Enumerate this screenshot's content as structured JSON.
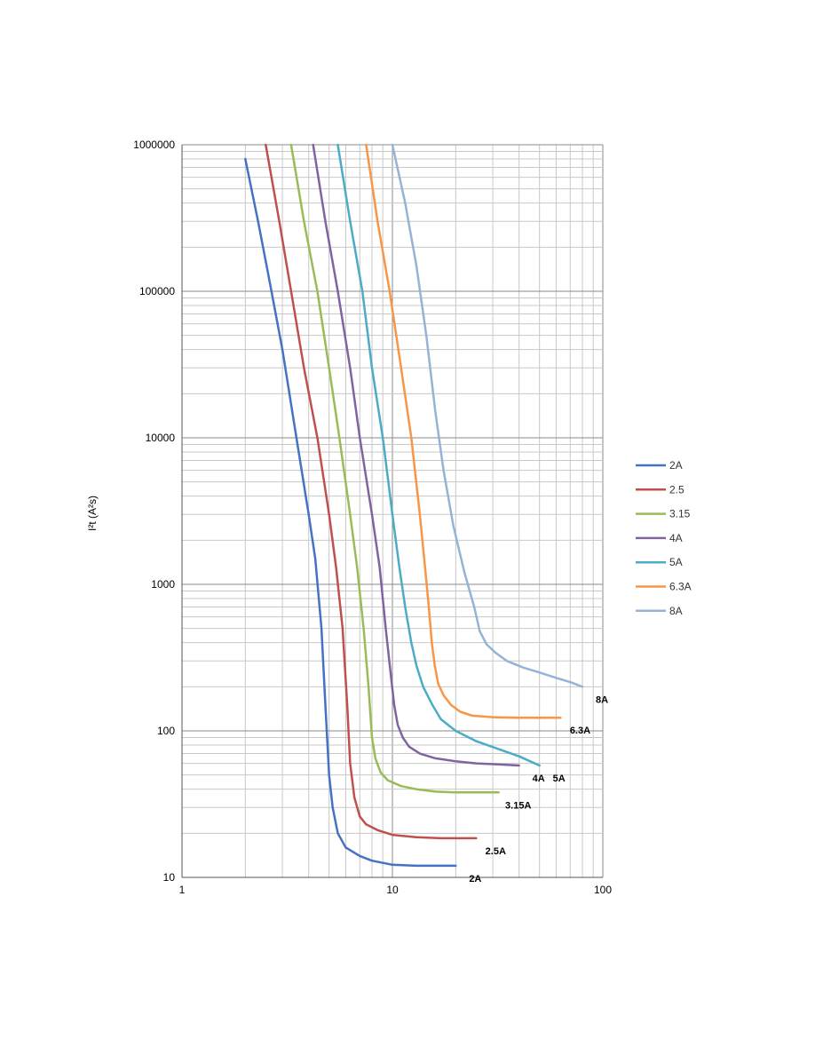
{
  "chart_data": {
    "type": "line",
    "title": "",
    "xlabel": "",
    "ylabel": "I²t (A²s)",
    "xscale": "log",
    "yscale": "log",
    "xlim": [
      1,
      100
    ],
    "ylim": [
      10,
      1000000
    ],
    "x_ticks": [
      "1",
      "10",
      "100"
    ],
    "y_ticks": [
      "10",
      "100",
      "1000",
      "10000",
      "100000",
      "1000000"
    ],
    "grid": true,
    "legend_position": "right",
    "series": [
      {
        "name": "2A",
        "color": "#4472C4",
        "end_label": "2A",
        "x": [
          2,
          2.3,
          2.6,
          3,
          3.5,
          4,
          4.3,
          4.6,
          4.8,
          5,
          5.2,
          5.5,
          6,
          7,
          8,
          10,
          13,
          16,
          20
        ],
        "y": [
          800000,
          300000,
          120000,
          40000,
          10000,
          3000,
          1500,
          500,
          150,
          50,
          30,
          20,
          16,
          14,
          13,
          12.2,
          12,
          12,
          12
        ]
      },
      {
        "name": "2.5",
        "color": "#C0504D",
        "end_label": "2.5A",
        "x": [
          2.5,
          2.9,
          3.3,
          3.8,
          4.4,
          5,
          5.4,
          5.8,
          6.1,
          6.3,
          6.6,
          7,
          7.5,
          8.5,
          10,
          13,
          17,
          22,
          25
        ],
        "y": [
          1000000,
          300000,
          100000,
          30000,
          10000,
          3000,
          1300,
          500,
          150,
          60,
          35,
          26,
          23,
          21,
          19.5,
          18.8,
          18.5,
          18.5,
          18.5
        ]
      },
      {
        "name": "3.15",
        "color": "#9BBB59",
        "end_label": "3.15A",
        "x": [
          3.3,
          3.8,
          4.4,
          5,
          5.6,
          6.3,
          6.8,
          7.3,
          7.7,
          8,
          8.3,
          8.8,
          9.5,
          11,
          13,
          16,
          20,
          26,
          32
        ],
        "y": [
          1000000,
          300000,
          100000,
          30000,
          10000,
          3000,
          1300,
          500,
          200,
          90,
          65,
          52,
          46,
          42,
          40,
          38.5,
          38,
          38,
          38
        ]
      },
      {
        "name": "4A",
        "color": "#8064A2",
        "end_label": "4A",
        "x": [
          4.2,
          4.8,
          5.5,
          6.3,
          7,
          8,
          8.7,
          9.3,
          9.8,
          10.2,
          10.6,
          11.2,
          12,
          13.5,
          16,
          20,
          25,
          32,
          40
        ],
        "y": [
          1000000,
          300000,
          100000,
          30000,
          10000,
          3000,
          1300,
          500,
          250,
          150,
          110,
          90,
          78,
          70,
          65,
          62,
          60,
          59,
          58
        ]
      },
      {
        "name": "5A",
        "color": "#4BACC6",
        "end_label": "5A",
        "x": [
          5.5,
          6.3,
          7.2,
          8,
          9,
          10,
          10.8,
          11.5,
          12.3,
          13,
          14,
          15.5,
          17,
          20,
          25,
          32,
          40,
          50
        ],
        "y": [
          1000000,
          300000,
          100000,
          30000,
          10000,
          3000,
          1300,
          700,
          400,
          280,
          200,
          150,
          120,
          100,
          85,
          75,
          67,
          58
        ]
      },
      {
        "name": "6.3A",
        "color": "#F79646",
        "end_label": "6.3A",
        "x": [
          7.5,
          8.5,
          9.7,
          11,
          12.3,
          13.5,
          14.3,
          14.9,
          15.4,
          15.9,
          16.5,
          17.5,
          19,
          21,
          24,
          30,
          40,
          50,
          63
        ],
        "y": [
          1000000,
          300000,
          100000,
          30000,
          10000,
          3000,
          1300,
          700,
          400,
          280,
          210,
          175,
          150,
          135,
          127,
          124,
          123,
          123,
          123
        ]
      },
      {
        "name": "8A",
        "color": "#95B3D7",
        "end_label": "8A",
        "x": [
          10,
          11.5,
          13,
          14.5,
          16,
          17.5,
          19.5,
          22,
          24.5,
          26,
          28,
          31,
          35,
          42,
          50,
          60,
          70,
          80
        ],
        "y": [
          1000000,
          400000,
          150000,
          50000,
          15000,
          6000,
          2500,
          1200,
          700,
          480,
          390,
          340,
          300,
          270,
          250,
          230,
          215,
          200
        ]
      }
    ]
  }
}
